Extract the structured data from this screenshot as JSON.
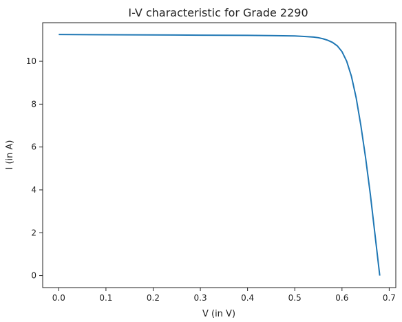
{
  "chart_data": {
    "type": "line",
    "title": "I-V characteristic for Grade 2290",
    "xlabel": "V (in V)",
    "ylabel": "I (in A)",
    "xlim": [
      -0.034,
      0.714
    ],
    "ylim": [
      -0.56,
      11.8
    ],
    "xticks": [
      0.0,
      0.1,
      0.2,
      0.3,
      0.4,
      0.5,
      0.6,
      0.7
    ],
    "xtick_labels": [
      "0.0",
      "0.1",
      "0.2",
      "0.3",
      "0.4",
      "0.5",
      "0.6",
      "0.7"
    ],
    "yticks": [
      0,
      2,
      4,
      6,
      8,
      10
    ],
    "ytick_labels": [
      "0",
      "2",
      "4",
      "6",
      "8",
      "10"
    ],
    "grid": false,
    "legend": "none",
    "line_color": "#1f77b4",
    "series": [
      {
        "x": [
          0.0,
          0.1,
          0.2,
          0.3,
          0.4,
          0.45,
          0.5,
          0.52,
          0.54,
          0.55,
          0.56,
          0.57,
          0.58,
          0.59,
          0.6,
          0.61,
          0.62,
          0.63,
          0.64,
          0.65,
          0.66,
          0.67,
          0.675,
          0.68
        ],
        "y": [
          11.25,
          11.24,
          11.23,
          11.22,
          11.21,
          11.2,
          11.18,
          11.16,
          11.13,
          11.1,
          11.05,
          10.98,
          10.88,
          10.72,
          10.45,
          10.0,
          9.3,
          8.3,
          7.0,
          5.5,
          3.8,
          1.9,
          0.95,
          0.0
        ]
      }
    ]
  }
}
